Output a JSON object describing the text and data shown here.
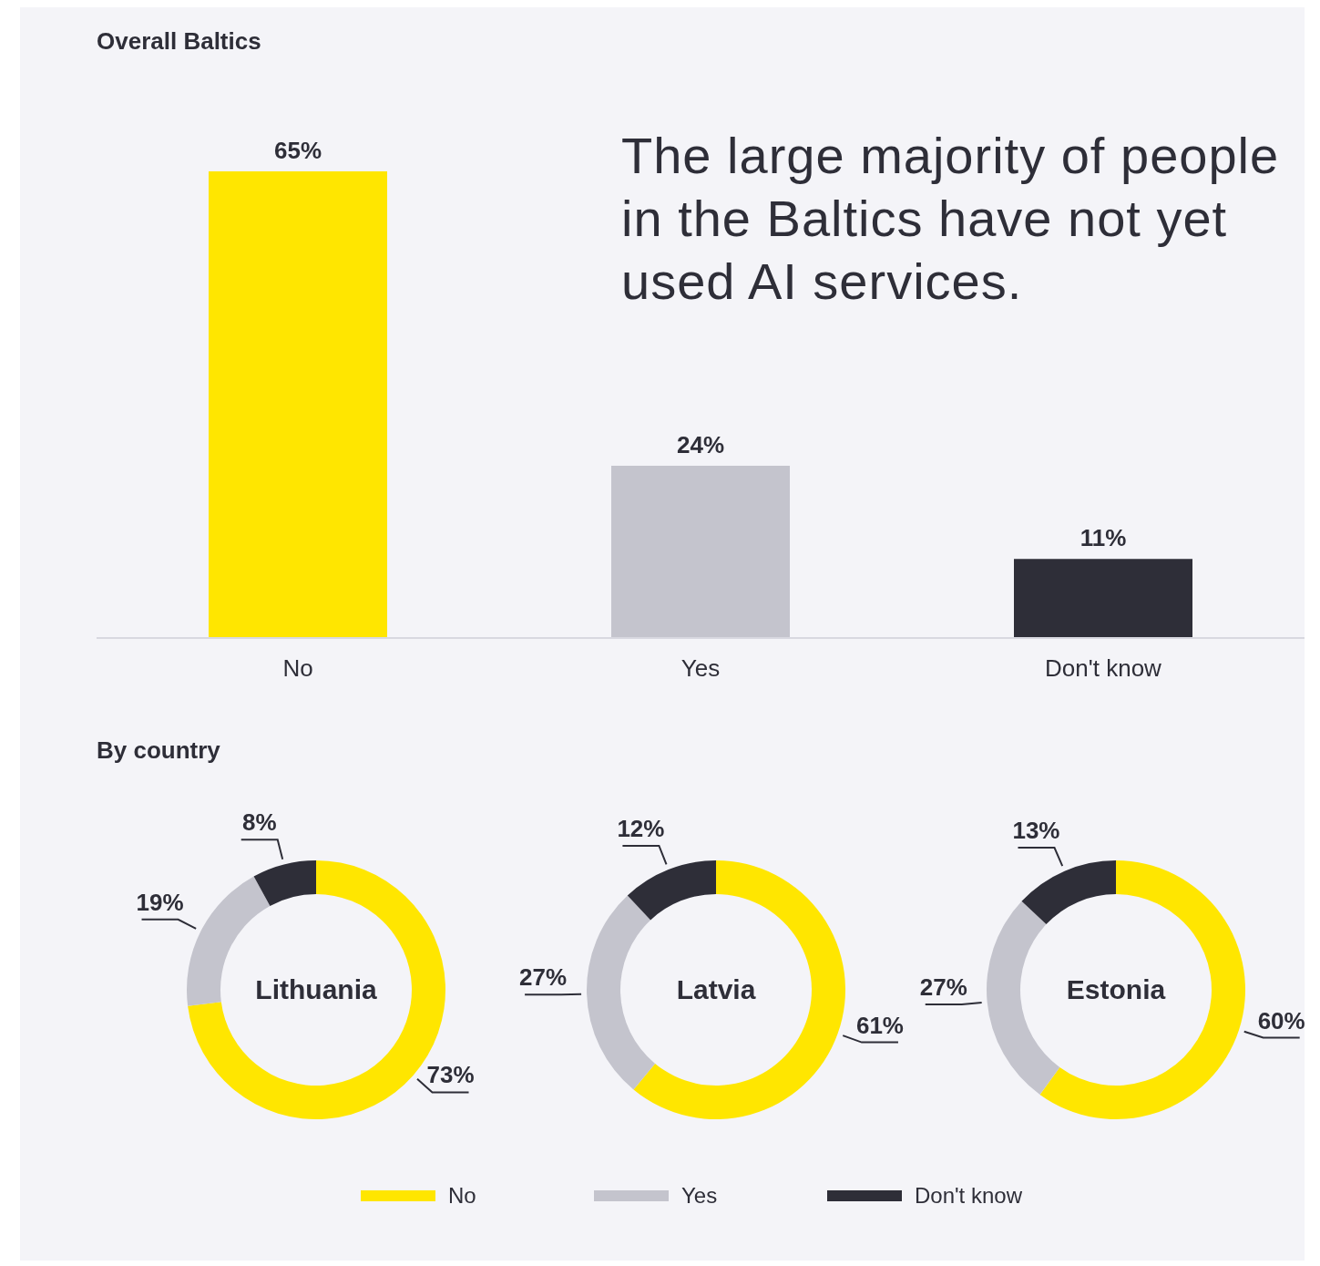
{
  "chart_data": [
    {
      "type": "bar",
      "title": "Overall Baltics",
      "categories": [
        "No",
        "Yes",
        "Don't know"
      ],
      "values": [
        65,
        24,
        11
      ],
      "colors": [
        "#ffe600",
        "#c4c4cd",
        "#2e2e38"
      ],
      "value_labels": [
        "65%",
        "24%",
        "11%"
      ],
      "annotations": [
        "The large majority of people in the Baltics have not yet used AI services."
      ]
    },
    {
      "type": "donut",
      "subtitle": "By country",
      "title": "Lithuania",
      "categories": [
        "No",
        "Yes",
        "Don't know"
      ],
      "values": [
        73,
        19,
        8
      ],
      "colors": [
        "#ffe600",
        "#c4c4cd",
        "#2e2e38"
      ],
      "value_labels": [
        "73%",
        "19%",
        "8%"
      ],
      "legend": "bottom"
    },
    {
      "type": "donut",
      "title": "Latvia",
      "categories": [
        null,
        null,
        null
      ],
      "values": [
        61,
        27,
        12
      ],
      "colors": [
        "#ffe600",
        "#c4c4cd",
        "#2e2e38"
      ],
      "value_labels": [
        "61%",
        "27%",
        "12%"
      ]
    },
    {
      "type": "donut",
      "title": "Estonia",
      "categories": [
        null,
        null,
        null
      ],
      "values": [
        60,
        27,
        13
      ],
      "colors": [
        "#ffe600",
        "#c4c4cd",
        "#2e2e38"
      ],
      "value_labels": [
        "60%",
        "27%",
        "13%"
      ]
    }
  ]
}
